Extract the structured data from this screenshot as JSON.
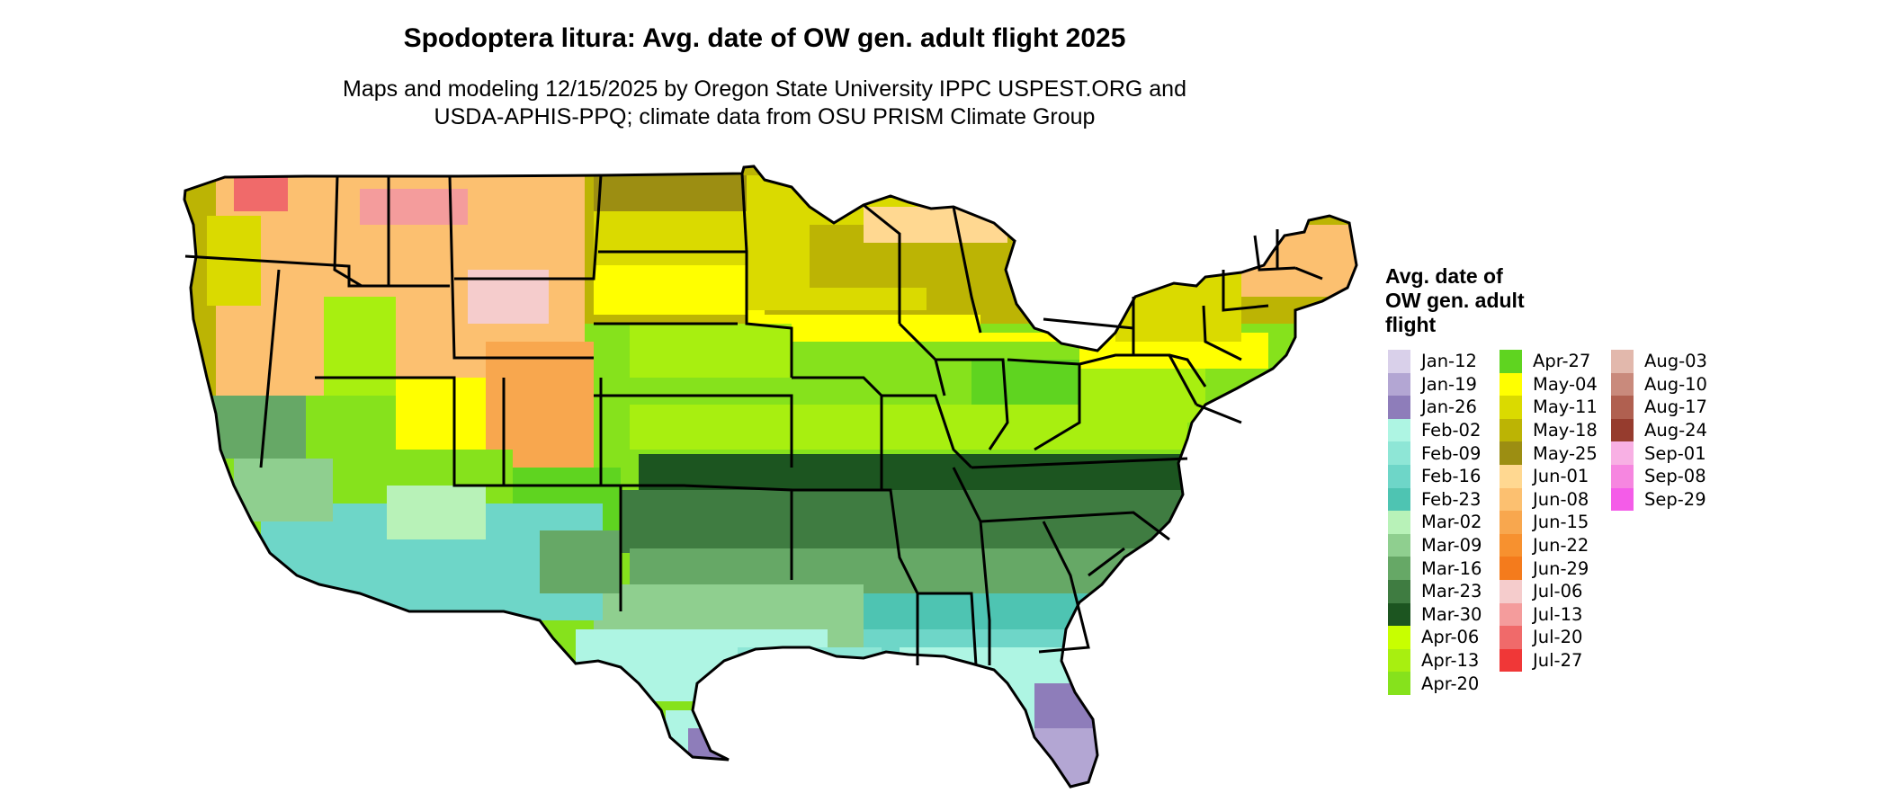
{
  "map": {
    "title": "Spodoptera litura: Avg. date of OW gen. adult flight 2025",
    "subtitle_lines": [
      "Maps and modeling 12/15/2025 by Oregon State University IPPC USPEST.ORG and",
      "USDA-APHIS-PPQ; climate data from OSU PRISM Climate Group"
    ],
    "legend_title_lines": [
      "Avg. date of",
      "OW gen. adult",
      "flight"
    ],
    "legend": [
      {
        "label": "Jan-12",
        "color": "#d9d0ea"
      },
      {
        "label": "Jan-19",
        "color": "#b3a6d3"
      },
      {
        "label": "Jan-26",
        "color": "#8e7dba"
      },
      {
        "label": "Feb-02",
        "color": "#aef5e3"
      },
      {
        "label": "Feb-09",
        "color": "#8ee6d6"
      },
      {
        "label": "Feb-16",
        "color": "#6ed6c8"
      },
      {
        "label": "Feb-23",
        "color": "#4ec4b2"
      },
      {
        "label": "Mar-02",
        "color": "#b8f2b8"
      },
      {
        "label": "Mar-09",
        "color": "#8fcf8f"
      },
      {
        "label": "Mar-16",
        "color": "#66a866"
      },
      {
        "label": "Mar-23",
        "color": "#3f7c41"
      },
      {
        "label": "Mar-30",
        "color": "#1c5520"
      },
      {
        "label": "Apr-06",
        "color": "#c8ff00"
      },
      {
        "label": "Apr-13",
        "color": "#a8ef10"
      },
      {
        "label": "Apr-20",
        "color": "#86e21c"
      },
      {
        "label": "Apr-27",
        "color": "#5fd420"
      },
      {
        "label": "May-04",
        "color": "#ffff00"
      },
      {
        "label": "May-11",
        "color": "#dada00"
      },
      {
        "label": "May-18",
        "color": "#bcb404"
      },
      {
        "label": "May-25",
        "color": "#9c8e12"
      },
      {
        "label": "Jun-01",
        "color": "#ffd891"
      },
      {
        "label": "Jun-08",
        "color": "#fcc070"
      },
      {
        "label": "Jun-15",
        "color": "#f8a74e"
      },
      {
        "label": "Jun-22",
        "color": "#f7912f"
      },
      {
        "label": "Jun-29",
        "color": "#f47b1c"
      },
      {
        "label": "Jul-06",
        "color": "#f5cccc"
      },
      {
        "label": "Jul-13",
        "color": "#f49c9c"
      },
      {
        "label": "Jul-20",
        "color": "#f06a6a"
      },
      {
        "label": "Jul-27",
        "color": "#f03737"
      },
      {
        "label": "Aug-03",
        "color": "#e2b8ac"
      },
      {
        "label": "Aug-10",
        "color": "#c98a7c"
      },
      {
        "label": "Aug-17",
        "color": "#b06050"
      },
      {
        "label": "Aug-24",
        "color": "#963c2e"
      },
      {
        "label": "Sep-01",
        "color": "#f8b0e4"
      },
      {
        "label": "Sep-08",
        "color": "#f686e0"
      },
      {
        "label": "Sep-29",
        "color": "#f45ce8"
      }
    ]
  }
}
